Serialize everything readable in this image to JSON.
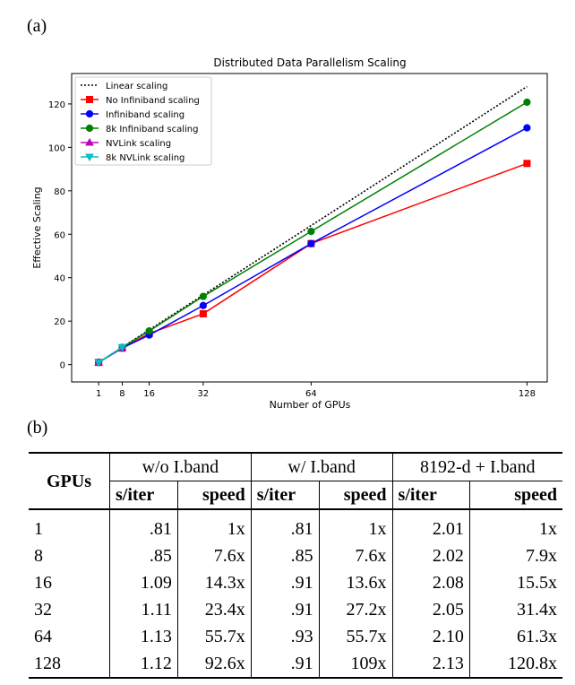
{
  "panel_a_label": "(a)",
  "panel_b_label": "(b)",
  "chart_data": {
    "type": "line",
    "title": "Distributed Data Parallelism Scaling",
    "xlabel": "Number of GPUs",
    "ylabel": "Effective Scaling",
    "xlim": [
      -7,
      134
    ],
    "ylim": [
      -8,
      134
    ],
    "xticks": [
      1,
      8,
      16,
      32,
      64,
      128
    ],
    "yticks": [
      0,
      20,
      40,
      60,
      80,
      100,
      120
    ],
    "legend_position": "top-left",
    "series": [
      {
        "name": "Linear scaling",
        "color": "#000000",
        "dash": "2,2",
        "marker": "none",
        "x": [
          1,
          128
        ],
        "y": [
          1,
          128
        ]
      },
      {
        "name": "No Infiniband scaling",
        "color": "#ff0000",
        "marker": "square",
        "x": [
          1,
          8,
          16,
          32,
          64,
          128
        ],
        "y": [
          1,
          7.6,
          14.3,
          23.4,
          55.7,
          92.6
        ]
      },
      {
        "name": "Infiniband scaling",
        "color": "#0000ff",
        "marker": "circle",
        "x": [
          1,
          8,
          16,
          32,
          64,
          128
        ],
        "y": [
          1,
          7.6,
          13.6,
          27.2,
          55.7,
          109
        ]
      },
      {
        "name": "8k Infiniband scaling",
        "color": "#008000",
        "marker": "circle",
        "x": [
          1,
          8,
          16,
          32,
          64,
          128
        ],
        "y": [
          1,
          7.9,
          15.5,
          31.4,
          61.3,
          120.8
        ]
      },
      {
        "name": "NVLink scaling",
        "color": "#bf00bf",
        "marker": "triangle-up",
        "x": [
          1,
          8
        ],
        "y": [
          1,
          7.8
        ]
      },
      {
        "name": "8k NVLink scaling",
        "color": "#00bfbf",
        "marker": "triangle-down",
        "x": [
          1,
          8
        ],
        "y": [
          1,
          8
        ]
      }
    ]
  },
  "table": {
    "gpus_header": "GPUs",
    "groups": [
      "w/o I.band",
      "w/ I.band",
      "8192-d + I.band"
    ],
    "subheaders": [
      "s/iter",
      "speed",
      "s/iter",
      "speed",
      "s/iter",
      "speed"
    ],
    "rows": [
      [
        "1",
        ".81",
        "1x",
        ".81",
        "1x",
        "2.01",
        "1x"
      ],
      [
        "8",
        ".85",
        "7.6x",
        ".85",
        "7.6x",
        "2.02",
        "7.9x"
      ],
      [
        "16",
        "1.09",
        "14.3x",
        ".91",
        "13.6x",
        "2.08",
        "15.5x"
      ],
      [
        "32",
        "1.11",
        "23.4x",
        ".91",
        "27.2x",
        "2.05",
        "31.4x"
      ],
      [
        "64",
        "1.13",
        "55.7x",
        ".93",
        "55.7x",
        "2.10",
        "61.3x"
      ],
      [
        "128",
        "1.12",
        "92.6x",
        ".91",
        "109x",
        "2.13",
        "120.8x"
      ]
    ]
  }
}
